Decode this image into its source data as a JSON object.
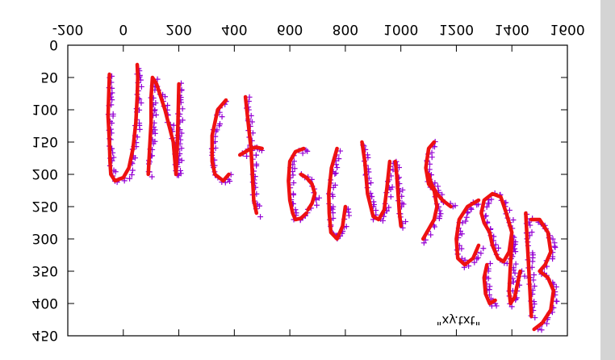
{
  "chart_data": {
    "type": "scatter",
    "orientation": "flipped-vertically",
    "xlim": [
      -200,
      1600
    ],
    "ylim": [
      0,
      450
    ],
    "x_ticks": [
      -200,
      0,
      200,
      400,
      600,
      800,
      1000,
      1200,
      1400,
      1600
    ],
    "y_ticks": [
      0,
      50,
      100,
      150,
      200,
      250,
      300,
      350,
      400,
      450
    ],
    "x_tick_labels": [
      "-200",
      "0",
      "200",
      "400",
      "600",
      "800",
      "1000",
      "1200",
      "1400",
      "1600"
    ],
    "y_tick_labels": [
      "0",
      "50",
      "100",
      "150",
      "200",
      "250",
      "300",
      "350",
      "400",
      "450"
    ],
    "grid": false,
    "legend_position": "bottom-right",
    "colors": {
      "points": "#9400d3",
      "overlay_ink": "#ee1111"
    },
    "series": [
      {
        "name": "\"xy.txt\"",
        "marker": "plus",
        "strokes": [
          {
            "x": [
              -50,
              -52,
              -55,
              -50,
              -48,
              -45,
              -30,
              0,
              20,
              35,
              45,
              50,
              52,
              50
            ],
            "y": [
              45,
              70,
              110,
              150,
              180,
              200,
              210,
              205,
              190,
              160,
              120,
              80,
              50,
              30
            ]
          },
          {
            "x": [
              90,
              95,
              100,
              100,
              105,
              120,
              150,
              180,
              190
            ],
            "y": [
              200,
              160,
              120,
              80,
              50,
              60,
              100,
              150,
              200
            ]
          },
          {
            "x": [
              190,
              195,
              198,
              200
            ],
            "y": [
              200,
              150,
              100,
              60
            ]
          },
          {
            "x": [
              370,
              340,
              320,
              320,
              330,
              360,
              380
            ],
            "y": [
              85,
              100,
              140,
              180,
              200,
              210,
              200
            ]
          },
          {
            "x": [
              440,
              450,
              460,
              465,
              470,
              480
            ],
            "y": [
              80,
              120,
              160,
              200,
              240,
              260
            ]
          },
          {
            "x": [
              420,
              440,
              460,
              480,
              500
            ],
            "y": [
              170,
              165,
              160,
              158,
              160
            ]
          },
          {
            "x": [
              650,
              620,
              600,
              595,
              600,
              610,
              620,
              640,
              660
            ],
            "y": [
              160,
              165,
              180,
              210,
              240,
              260,
              270,
              268,
              260
            ]
          },
          {
            "x": [
              640,
              660,
              680,
              690,
              680,
              665
            ],
            "y": [
              200,
              205,
              215,
              230,
              245,
              255
            ]
          },
          {
            "x": [
              770,
              750,
              740,
              742,
              748,
              770,
              790,
              800
            ],
            "y": [
              160,
              190,
              230,
              260,
              290,
              300,
              280,
              250
            ]
          },
          {
            "x": [
              860,
              870,
              880,
              900,
              920,
              940,
              950,
              960
            ],
            "y": [
              150,
              180,
              230,
              265,
              270,
              255,
              220,
              180
            ]
          },
          {
            "x": [
              980,
              985,
              990,
              995,
              1000
            ],
            "y": [
              180,
              200,
              230,
              260,
              280
            ]
          },
          {
            "x": [
              1120,
              1100,
              1090,
              1100,
              1120,
              1130,
              1120,
              1100,
              1080
            ],
            "y": [
              150,
              160,
              190,
              215,
              225,
              250,
              270,
              285,
              300
            ]
          },
          {
            "x": [
              1100,
              1110,
              1130,
              1150,
              1180
            ],
            "y": [
              200,
              215,
              230,
              240,
              250
            ]
          },
          {
            "x": [
              1280,
              1240,
              1210,
              1200,
              1205,
              1230,
              1260,
              1280
            ],
            "y": [
              240,
              250,
              270,
              300,
              330,
              340,
              330,
              310
            ]
          },
          {
            "x": [
              1320,
              1300,
              1290,
              1300,
              1330,
              1360,
              1380,
              1400,
              1390,
              1370,
              1350,
              1330,
              1320
            ],
            "y": [
              290,
              275,
              260,
              240,
              230,
              235,
              260,
              290,
              320,
              335,
              330,
              310,
              290
            ]
          },
          {
            "x": [
              1310,
              1300,
              1305,
              1320,
              1340
            ],
            "y": [
              340,
              360,
              385,
              400,
              395
            ]
          },
          {
            "x": [
              1400,
              1395,
              1390,
              1395,
              1410,
              1430
            ],
            "y": [
              300,
              340,
              380,
              400,
              390,
              350
            ]
          },
          {
            "x": [
              1450,
              1455,
              1460,
              1465,
              1470
            ],
            "y": [
              260,
              300,
              340,
              380,
              420
            ]
          },
          {
            "x": [
              1470,
              1500,
              1530,
              1540,
              1520,
              1500,
              1530,
              1550,
              1540,
              1510,
              1480
            ],
            "y": [
              270,
              270,
              290,
              320,
              340,
              350,
              360,
              380,
              410,
              430,
              440
            ]
          }
        ]
      }
    ],
    "overlay_strokes": [
      {
        "x": [
          -50,
          -52,
          -55,
          -50,
          -48,
          -45,
          -30,
          0,
          20,
          35,
          45,
          50,
          52,
          50
        ],
        "y": [
          45,
          70,
          110,
          150,
          180,
          200,
          210,
          205,
          190,
          160,
          120,
          80,
          50,
          30
        ]
      },
      {
        "x": [
          90,
          95,
          100,
          100,
          105,
          120,
          150,
          180,
          190
        ],
        "y": [
          200,
          160,
          120,
          80,
          50,
          60,
          100,
          150,
          200
        ]
      },
      {
        "x": [
          190,
          195,
          198,
          200
        ],
        "y": [
          200,
          150,
          100,
          60
        ]
      },
      {
        "x": [
          370,
          340,
          320,
          320,
          330,
          360,
          380
        ],
        "y": [
          85,
          100,
          140,
          180,
          200,
          210,
          200
        ]
      },
      {
        "x": [
          440,
          450,
          460,
          465,
          470,
          480
        ],
        "y": [
          80,
          120,
          160,
          200,
          240,
          260
        ]
      },
      {
        "x": [
          420,
          440,
          460,
          480,
          500
        ],
        "y": [
          170,
          165,
          160,
          158,
          160
        ]
      },
      {
        "x": [
          650,
          620,
          600,
          595,
          600,
          610,
          620,
          640,
          660
        ],
        "y": [
          160,
          165,
          180,
          210,
          240,
          260,
          270,
          268,
          260
        ]
      },
      {
        "x": [
          640,
          660,
          680,
          690,
          680,
          665
        ],
        "y": [
          200,
          205,
          215,
          230,
          245,
          255
        ]
      },
      {
        "x": [
          770,
          750,
          740,
          742,
          748,
          770,
          790,
          800
        ],
        "y": [
          160,
          190,
          230,
          260,
          290,
          300,
          280,
          250
        ]
      },
      {
        "x": [
          860,
          870,
          880,
          900,
          920,
          940,
          950,
          960
        ],
        "y": [
          150,
          180,
          230,
          265,
          270,
          255,
          220,
          180
        ]
      },
      {
        "x": [
          980,
          985,
          990,
          995,
          1000
        ],
        "y": [
          180,
          200,
          230,
          260,
          280
        ]
      },
      {
        "x": [
          1120,
          1100,
          1090,
          1100,
          1120,
          1130,
          1120,
          1100,
          1080
        ],
        "y": [
          150,
          160,
          190,
          215,
          225,
          250,
          270,
          285,
          300
        ]
      },
      {
        "x": [
          1100,
          1110,
          1130,
          1150,
          1180
        ],
        "y": [
          200,
          215,
          230,
          240,
          250
        ]
      },
      {
        "x": [
          1280,
          1240,
          1210,
          1200,
          1205,
          1230,
          1260,
          1280
        ],
        "y": [
          240,
          250,
          270,
          300,
          330,
          340,
          330,
          310
        ]
      },
      {
        "x": [
          1320,
          1300,
          1290,
          1300,
          1330,
          1360,
          1380,
          1400,
          1390,
          1370,
          1350,
          1330,
          1320
        ],
        "y": [
          290,
          275,
          260,
          240,
          230,
          235,
          260,
          290,
          320,
          335,
          330,
          310,
          290
        ]
      },
      {
        "x": [
          1310,
          1300,
          1305,
          1320,
          1340
        ],
        "y": [
          340,
          360,
          385,
          400,
          395
        ]
      },
      {
        "x": [
          1400,
          1395,
          1390,
          1395,
          1410,
          1430
        ],
        "y": [
          300,
          340,
          380,
          400,
          390,
          350
        ]
      },
      {
        "x": [
          1450,
          1455,
          1460,
          1465,
          1470
        ],
        "y": [
          260,
          300,
          340,
          380,
          420
        ]
      },
      {
        "x": [
          1470,
          1500,
          1530,
          1540,
          1520,
          1500,
          1530,
          1550,
          1540,
          1510,
          1480
        ],
        "y": [
          270,
          270,
          290,
          320,
          340,
          350,
          360,
          380,
          410,
          430,
          440
        ]
      }
    ]
  }
}
